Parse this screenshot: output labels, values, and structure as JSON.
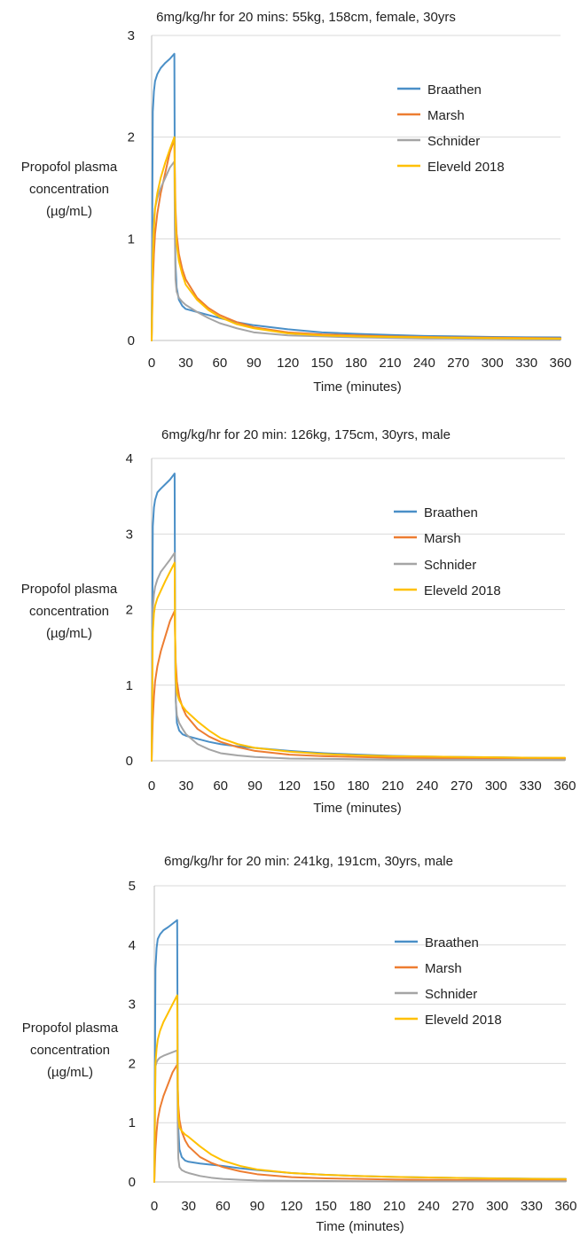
{
  "colors": {
    "Braathen": "#4a8fc7",
    "Marsh": "#ed7d31",
    "Schnider": "#a5a5a5",
    "Eleveld 2018": "#ffc000"
  },
  "chart_data": [
    {
      "type": "line",
      "title": "6mg/kg/hr for 20 mins: 55kg, 158cm, female, 30yrs",
      "xlabel": "Time (minutes)",
      "ylabel": [
        "Propofol plasma",
        "concentration",
        "(µg/mL)"
      ],
      "xlim": [
        0,
        360
      ],
      "ylim": [
        0,
        3
      ],
      "xticks": [
        "0",
        "30",
        "60",
        "90",
        "120",
        "150",
        "180",
        "210",
        "240",
        "270",
        "300",
        "330",
        "360"
      ],
      "yticks": [
        "0",
        "1",
        "2",
        "3"
      ],
      "grid": true,
      "legend_position": "top-right",
      "series": [
        {
          "name": "Braathen",
          "x": [
            0,
            1,
            2,
            3,
            5,
            8,
            12,
            16,
            20,
            20.5,
            21,
            22,
            24,
            27,
            30,
            40,
            50,
            60,
            75,
            90,
            120,
            150,
            180,
            210,
            240,
            270,
            300,
            330,
            360
          ],
          "y": [
            0,
            2.25,
            2.45,
            2.55,
            2.62,
            2.68,
            2.73,
            2.77,
            2.82,
            1.2,
            0.75,
            0.52,
            0.4,
            0.34,
            0.31,
            0.28,
            0.25,
            0.22,
            0.18,
            0.15,
            0.11,
            0.08,
            0.065,
            0.055,
            0.045,
            0.04,
            0.035,
            0.032,
            0.03
          ]
        },
        {
          "name": "Marsh",
          "x": [
            0,
            1,
            2,
            3,
            5,
            8,
            12,
            16,
            20,
            20.5,
            21,
            22,
            24,
            27,
            30,
            40,
            50,
            60,
            75,
            90,
            120,
            150,
            180,
            210,
            240,
            270,
            300,
            330,
            360
          ],
          "y": [
            0,
            0.55,
            0.85,
            1.05,
            1.25,
            1.45,
            1.65,
            1.85,
            1.98,
            1.6,
            1.3,
            1.05,
            0.85,
            0.7,
            0.6,
            0.42,
            0.32,
            0.25,
            0.18,
            0.13,
            0.08,
            0.06,
            0.05,
            0.04,
            0.035,
            0.03,
            0.028,
            0.025,
            0.022
          ]
        },
        {
          "name": "Schnider",
          "x": [
            0,
            1,
            2,
            3,
            5,
            8,
            12,
            16,
            20,
            20.5,
            21,
            22,
            24,
            27,
            30,
            40,
            50,
            60,
            75,
            90,
            120,
            150,
            180,
            210,
            240,
            270,
            300,
            330,
            360
          ],
          "y": [
            0,
            1.0,
            1.2,
            1.3,
            1.4,
            1.5,
            1.6,
            1.7,
            1.76,
            1.0,
            0.6,
            0.48,
            0.42,
            0.38,
            0.35,
            0.28,
            0.22,
            0.17,
            0.12,
            0.08,
            0.05,
            0.04,
            0.03,
            0.025,
            0.02,
            0.018,
            0.015,
            0.013,
            0.01
          ]
        },
        {
          "name": "Eleveld 2018",
          "x": [
            0,
            1,
            2,
            3,
            5,
            8,
            12,
            16,
            20,
            20.5,
            21,
            22,
            24,
            27,
            30,
            40,
            50,
            60,
            75,
            90,
            120,
            150,
            180,
            210,
            240,
            270,
            300,
            330,
            360
          ],
          "y": [
            0,
            0.8,
            1.1,
            1.3,
            1.45,
            1.6,
            1.75,
            1.88,
            2.0,
            1.5,
            1.2,
            0.95,
            0.78,
            0.65,
            0.55,
            0.4,
            0.3,
            0.23,
            0.16,
            0.12,
            0.07,
            0.05,
            0.04,
            0.035,
            0.03,
            0.026,
            0.023,
            0.02,
            0.018
          ]
        }
      ]
    },
    {
      "type": "line",
      "title": "6mg/kg/hr for 20 min: 126kg, 175cm, 30yrs, male",
      "xlabel": "Time (minutes)",
      "ylabel": [
        "Propofol plasma",
        "concentration",
        "(µg/mL)"
      ],
      "xlim": [
        0,
        360
      ],
      "ylim": [
        0,
        4
      ],
      "xticks": [
        "0",
        "30",
        "60",
        "90",
        "120",
        "150",
        "180",
        "210",
        "240",
        "270",
        "300",
        "330",
        "360"
      ],
      "yticks": [
        "0",
        "1",
        "2",
        "3",
        "4"
      ],
      "grid": true,
      "legend_position": "top-right",
      "series": [
        {
          "name": "Braathen",
          "x": [
            0,
            1,
            2,
            3,
            5,
            8,
            12,
            16,
            20,
            20.5,
            21,
            22,
            24,
            27,
            30,
            40,
            50,
            60,
            75,
            90,
            120,
            150,
            180,
            210,
            240,
            270,
            300,
            330,
            360
          ],
          "y": [
            0,
            3.1,
            3.35,
            3.45,
            3.55,
            3.6,
            3.66,
            3.72,
            3.8,
            1.5,
            0.8,
            0.5,
            0.4,
            0.35,
            0.33,
            0.29,
            0.25,
            0.22,
            0.19,
            0.17,
            0.13,
            0.1,
            0.08,
            0.065,
            0.055,
            0.05,
            0.045,
            0.04,
            0.035
          ]
        },
        {
          "name": "Marsh",
          "x": [
            0,
            1,
            2,
            3,
            5,
            8,
            12,
            16,
            20,
            20.5,
            21,
            22,
            24,
            27,
            30,
            40,
            50,
            60,
            75,
            90,
            120,
            150,
            180,
            210,
            240,
            270,
            300,
            330,
            360
          ],
          "y": [
            0,
            0.55,
            0.85,
            1.05,
            1.25,
            1.45,
            1.65,
            1.85,
            1.98,
            1.6,
            1.3,
            1.05,
            0.85,
            0.7,
            0.6,
            0.42,
            0.32,
            0.25,
            0.18,
            0.13,
            0.08,
            0.06,
            0.05,
            0.04,
            0.035,
            0.03,
            0.028,
            0.025,
            0.022
          ]
        },
        {
          "name": "Schnider",
          "x": [
            0,
            1,
            2,
            3,
            5,
            8,
            12,
            16,
            20,
            20.5,
            21,
            22,
            24,
            27,
            30,
            40,
            50,
            60,
            75,
            90,
            120,
            150,
            180,
            210,
            240,
            270,
            300,
            330,
            360
          ],
          "y": [
            0,
            2.0,
            2.2,
            2.3,
            2.4,
            2.5,
            2.58,
            2.66,
            2.75,
            1.5,
            0.8,
            0.6,
            0.5,
            0.42,
            0.35,
            0.22,
            0.15,
            0.1,
            0.07,
            0.05,
            0.03,
            0.025,
            0.02,
            0.018,
            0.015,
            0.013,
            0.012,
            0.011,
            0.01
          ]
        },
        {
          "name": "Eleveld 2018",
          "x": [
            0,
            1,
            2,
            3,
            5,
            8,
            12,
            16,
            20,
            20.5,
            21,
            22,
            24,
            27,
            30,
            40,
            50,
            60,
            75,
            90,
            120,
            150,
            180,
            210,
            240,
            270,
            300,
            330,
            360
          ],
          "y": [
            0,
            1.7,
            1.95,
            2.05,
            2.15,
            2.25,
            2.38,
            2.5,
            2.62,
            1.6,
            1.1,
            0.9,
            0.8,
            0.72,
            0.66,
            0.52,
            0.4,
            0.3,
            0.22,
            0.17,
            0.12,
            0.09,
            0.07,
            0.06,
            0.055,
            0.05,
            0.045,
            0.04,
            0.04
          ]
        }
      ]
    },
    {
      "type": "line",
      "title": "6mg/kg/hr for 20 min: 241kg, 191cm, 30yrs, male",
      "xlabel": "Time (minutes)",
      "ylabel": [
        "Propofol plasma",
        "concentration",
        "(µg/mL)"
      ],
      "xlim": [
        0,
        360
      ],
      "ylim": [
        0,
        5
      ],
      "xticks": [
        "0",
        "30",
        "60",
        "90",
        "120",
        "150",
        "180",
        "210",
        "240",
        "270",
        "300",
        "330",
        "360"
      ],
      "yticks": [
        "0",
        "1",
        "2",
        "3",
        "4",
        "5"
      ],
      "grid": true,
      "legend_position": "top-right",
      "series": [
        {
          "name": "Braathen",
          "x": [
            0,
            1,
            2,
            3,
            5,
            8,
            12,
            16,
            20,
            20.5,
            21,
            22,
            24,
            27,
            30,
            40,
            50,
            60,
            75,
            90,
            120,
            150,
            180,
            210,
            240,
            270,
            300,
            330,
            360
          ],
          "y": [
            0,
            3.6,
            3.95,
            4.1,
            4.18,
            4.25,
            4.3,
            4.36,
            4.42,
            1.8,
            0.9,
            0.55,
            0.42,
            0.36,
            0.34,
            0.31,
            0.29,
            0.27,
            0.23,
            0.2,
            0.15,
            0.12,
            0.1,
            0.085,
            0.075,
            0.065,
            0.06,
            0.055,
            0.05
          ]
        },
        {
          "name": "Marsh",
          "x": [
            0,
            1,
            2,
            3,
            5,
            8,
            12,
            16,
            20,
            20.5,
            21,
            22,
            24,
            27,
            30,
            40,
            50,
            60,
            75,
            90,
            120,
            150,
            180,
            210,
            240,
            270,
            300,
            330,
            360
          ],
          "y": [
            0,
            0.55,
            0.85,
            1.05,
            1.25,
            1.45,
            1.65,
            1.85,
            1.98,
            1.6,
            1.3,
            1.05,
            0.85,
            0.7,
            0.6,
            0.42,
            0.32,
            0.25,
            0.18,
            0.13,
            0.08,
            0.06,
            0.05,
            0.04,
            0.035,
            0.03,
            0.028,
            0.025,
            0.022
          ]
        },
        {
          "name": "Schnider",
          "x": [
            0,
            1,
            2,
            3,
            5,
            8,
            12,
            16,
            20,
            20.5,
            21,
            22,
            24,
            27,
            30,
            40,
            50,
            60,
            75,
            90,
            120,
            150,
            180,
            210,
            240,
            270,
            300,
            330,
            360
          ],
          "y": [
            0,
            1.95,
            2.02,
            2.06,
            2.1,
            2.13,
            2.16,
            2.19,
            2.22,
            0.9,
            0.4,
            0.25,
            0.2,
            0.17,
            0.15,
            0.1,
            0.07,
            0.05,
            0.035,
            0.025,
            0.018,
            0.015,
            0.012,
            0.01,
            0.01,
            0.01,
            0.01,
            0.01,
            0.01
          ]
        },
        {
          "name": "Eleveld 2018",
          "x": [
            0,
            1,
            2,
            3,
            5,
            8,
            12,
            16,
            20,
            20.5,
            21,
            22,
            24,
            27,
            30,
            40,
            50,
            60,
            75,
            90,
            120,
            150,
            180,
            210,
            240,
            270,
            300,
            330,
            360
          ],
          "y": [
            0,
            2.0,
            2.25,
            2.4,
            2.55,
            2.7,
            2.85,
            3.0,
            3.15,
            1.6,
            1.1,
            0.92,
            0.86,
            0.8,
            0.76,
            0.6,
            0.46,
            0.36,
            0.27,
            0.21,
            0.15,
            0.12,
            0.1,
            0.085,
            0.075,
            0.065,
            0.058,
            0.052,
            0.048
          ]
        }
      ]
    }
  ]
}
